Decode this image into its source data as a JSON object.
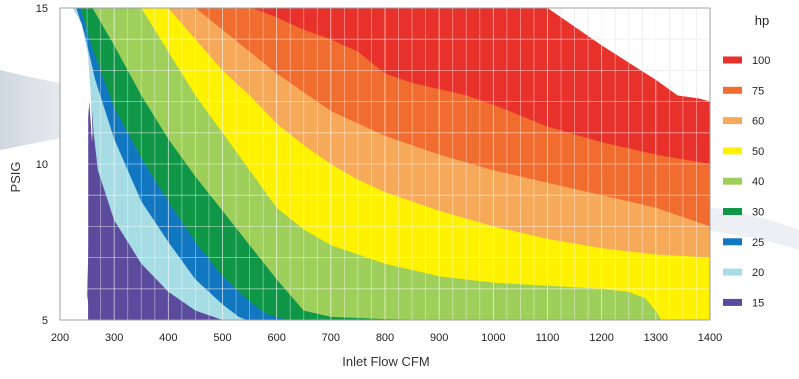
{
  "chart_data": {
    "type": "area",
    "title": "",
    "xlabel": "Inlet Flow CFM",
    "ylabel": "PSIG",
    "xlim": [
      200,
      1400
    ],
    "ylim": [
      5,
      15
    ],
    "x_ticks": [
      200,
      300,
      400,
      500,
      600,
      700,
      800,
      900,
      1000,
      1100,
      1200,
      1300,
      1400
    ],
    "y_ticks": [
      5,
      10,
      15
    ],
    "grid": true,
    "legend_title": "hp",
    "legend_position": "right",
    "series": [
      {
        "name": "100",
        "color": "#e8312b",
        "boundary": [
          [
            1400,
            15
          ],
          [
            1400,
            10
          ],
          [
            1090,
            10
          ],
          [
            1000,
            10
          ],
          [
            900,
            10
          ],
          [
            800,
            10
          ],
          [
            760,
            10
          ],
          [
            780,
            15
          ]
        ]
      },
      {
        "name": "75",
        "color": "#f06c2f",
        "boundary": [
          [
            1400,
            12
          ],
          [
            1380,
            12.1
          ],
          [
            1340,
            12.2
          ],
          [
            1300,
            12.7
          ],
          [
            1200,
            13.8
          ],
          [
            1100,
            15
          ],
          [
            1000,
            15
          ],
          [
            900,
            15
          ],
          [
            800,
            15
          ],
          [
            780,
            15
          ],
          [
            560,
            15
          ],
          [
            560,
            14.5
          ],
          [
            760,
            10
          ],
          [
            800,
            10
          ],
          [
            900,
            10
          ],
          [
            1000,
            10
          ],
          [
            1090,
            10
          ],
          [
            1400,
            10
          ]
        ]
      },
      {
        "name": "60",
        "color": "#f7a95a",
        "boundary": [
          [
            1400,
            10
          ],
          [
            1300,
            10.3
          ],
          [
            1200,
            10.7
          ],
          [
            1100,
            11.2
          ],
          [
            1000,
            11.9
          ],
          [
            950,
            12.2
          ],
          [
            900,
            12.4
          ],
          [
            850,
            12.6
          ],
          [
            800,
            12.9
          ],
          [
            750,
            13.6
          ],
          [
            700,
            14.0
          ],
          [
            650,
            14.3
          ],
          [
            600,
            14.7
          ],
          [
            555,
            15
          ],
          [
            450,
            15
          ],
          [
            450,
            14.5
          ]
        ]
      },
      {
        "name": "50",
        "color": "#fff200",
        "boundary": []
      },
      {
        "name": "40",
        "color": "#9fcf5b",
        "boundary": []
      },
      {
        "name": "30",
        "color": "#0f9747",
        "boundary": []
      },
      {
        "name": "25",
        "color": "#1177c0",
        "boundary": []
      },
      {
        "name": "20",
        "color": "#a6dce4",
        "boundary": []
      },
      {
        "name": "15",
        "color": "#5b4b9c",
        "boundary": []
      }
    ],
    "curves": {
      "c100": [
        [
          780,
          15
        ],
        [
          1100,
          15
        ],
        [
          1200,
          13.8
        ],
        [
          1300,
          12.7
        ],
        [
          1340,
          12.2
        ],
        [
          1380,
          12.1
        ],
        [
          1400,
          12
        ]
      ],
      "c75": [
        [
          555,
          15
        ],
        [
          600,
          14.7
        ],
        [
          650,
          14.3
        ],
        [
          700,
          14.0
        ],
        [
          750,
          13.6
        ],
        [
          800,
          12.9
        ],
        [
          850,
          12.6
        ],
        [
          900,
          12.4
        ],
        [
          950,
          12.2
        ],
        [
          1000,
          11.9
        ],
        [
          1100,
          11.2
        ],
        [
          1200,
          10.7
        ],
        [
          1300,
          10.3
        ],
        [
          1400,
          10
        ]
      ],
      "c60": [
        [
          450,
          15
        ],
        [
          500,
          14.3
        ],
        [
          550,
          13.6
        ],
        [
          600,
          12.9
        ],
        [
          650,
          12.3
        ],
        [
          700,
          11.7
        ],
        [
          750,
          11.3
        ],
        [
          800,
          10.9
        ],
        [
          850,
          10.6
        ],
        [
          900,
          10.3
        ],
        [
          1000,
          9.8
        ],
        [
          1100,
          9.4
        ],
        [
          1200,
          9.0
        ],
        [
          1300,
          8.6
        ],
        [
          1400,
          8.0
        ]
      ],
      "c50": [
        [
          400,
          15
        ],
        [
          450,
          14.0
        ],
        [
          500,
          13.0
        ],
        [
          550,
          12.2
        ],
        [
          600,
          11.3
        ],
        [
          650,
          10.6
        ],
        [
          700,
          10.0
        ],
        [
          750,
          9.5
        ],
        [
          800,
          9.1
        ],
        [
          900,
          8.5
        ],
        [
          1000,
          8.0
        ],
        [
          1100,
          7.6
        ],
        [
          1200,
          7.3
        ],
        [
          1300,
          7.1
        ],
        [
          1400,
          7.0
        ]
      ],
      "c40": [
        [
          350,
          15
        ],
        [
          400,
          13.6
        ],
        [
          450,
          12.2
        ],
        [
          500,
          11.0
        ],
        [
          550,
          9.8
        ],
        [
          600,
          8.6
        ],
        [
          650,
          7.9
        ],
        [
          700,
          7.4
        ],
        [
          800,
          6.8
        ],
        [
          900,
          6.4
        ],
        [
          1000,
          6.2
        ],
        [
          1100,
          6.1
        ],
        [
          1200,
          6.0
        ],
        [
          1250,
          5.9
        ],
        [
          1280,
          5.7
        ],
        [
          1300,
          5.3
        ],
        [
          1310,
          5.0
        ]
      ],
      "c30": [
        [
          260,
          15
        ],
        [
          300,
          13.8
        ],
        [
          350,
          12.2
        ],
        [
          400,
          10.8
        ],
        [
          450,
          9.6
        ],
        [
          500,
          8.5
        ],
        [
          550,
          7.4
        ],
        [
          600,
          6.3
        ],
        [
          640,
          5.5
        ],
        [
          650,
          5.3
        ],
        [
          700,
          5.1
        ],
        [
          800,
          5.03
        ],
        [
          900,
          5.0
        ],
        [
          1000,
          5.0
        ]
      ],
      "c25": [
        [
          238,
          15
        ],
        [
          260,
          13.7
        ],
        [
          300,
          11.8
        ],
        [
          350,
          10.2
        ],
        [
          400,
          8.8
        ],
        [
          450,
          7.5
        ],
        [
          500,
          6.4
        ],
        [
          550,
          5.6
        ],
        [
          580,
          5.2
        ],
        [
          620,
          5.0
        ]
      ],
      "c20": [
        [
          230,
          15
        ],
        [
          245,
          14.2
        ],
        [
          265,
          12.7
        ],
        [
          300,
          10.8
        ],
        [
          350,
          8.8
        ],
        [
          400,
          7.5
        ],
        [
          450,
          6.3
        ],
        [
          500,
          5.5
        ],
        [
          530,
          5.1
        ],
        [
          545,
          5.0
        ]
      ],
      "c15": [
        [
          224,
          15
        ],
        [
          240,
          14.5
        ],
        [
          252,
          13.5
        ],
        [
          258,
          12.0
        ],
        [
          262,
          11.0
        ],
        [
          270,
          9.8
        ],
        [
          300,
          8.2
        ],
        [
          350,
          6.8
        ],
        [
          400,
          5.9
        ],
        [
          450,
          5.3
        ],
        [
          490,
          5.05
        ],
        [
          500,
          5.0
        ]
      ]
    }
  }
}
